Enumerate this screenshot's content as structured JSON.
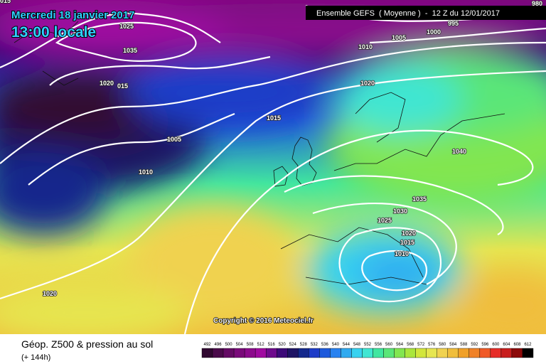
{
  "header": {
    "date": "Mercredi 18 janvier 2017",
    "time": "13:00 locale",
    "run": "Ensemble GEFS  ( Moyenne )  -  12 Z du 12/01/2017",
    "copyright": "Copyright © 2016 Meteociel.fr"
  },
  "isobar_labels": [
    "015",
    "1025",
    "1035",
    "1020",
    "015",
    "1015",
    "1005",
    "1010",
    "1020",
    "980",
    "995",
    "1000",
    "1005",
    "1010",
    "1020",
    "1040",
    "1035",
    "1030",
    "1025",
    "1020",
    "1015",
    "1010"
  ],
  "legend": {
    "title": "Géop. Z500 & pression au sol",
    "subtitle": "(+ 144h)",
    "levels": [
      "492",
      "496",
      "500",
      "504",
      "508",
      "512",
      "516",
      "520",
      "524",
      "528",
      "532",
      "536",
      "540",
      "544",
      "548",
      "552",
      "556",
      "560",
      "564",
      "568",
      "572",
      "576",
      "580",
      "584",
      "588",
      "592",
      "596",
      "600",
      "604",
      "608",
      "612"
    ],
    "colors": [
      "#300830",
      "#4a0a4a",
      "#640a64",
      "#7a0a7a",
      "#8c0a8c",
      "#a00aa0",
      "#6e0a8c",
      "#3c0a78",
      "#1e1464",
      "#14288c",
      "#1e3cc8",
      "#1e5adc",
      "#2882f0",
      "#30aaf0",
      "#38d2f0",
      "#40e6d2",
      "#40e6a0",
      "#5ae678",
      "#82e650",
      "#aae63c",
      "#d2e63c",
      "#e6e650",
      "#f0d250",
      "#f0be3c",
      "#f0a028",
      "#f08228",
      "#f05a28",
      "#e62d28",
      "#c81e1e",
      "#8c0a0a",
      "#000000"
    ]
  }
}
